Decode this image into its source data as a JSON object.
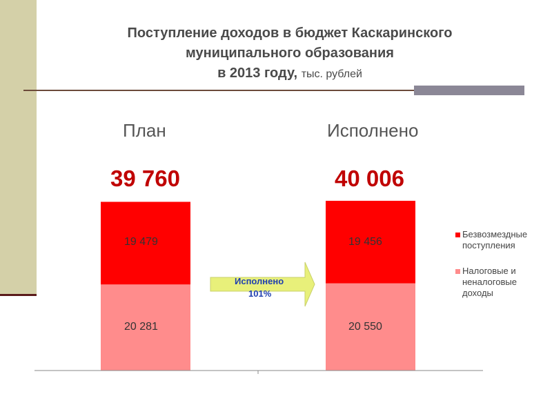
{
  "title": {
    "line1": "Поступление доходов в бюджет Каскаринского",
    "line2": "муниципального образования",
    "line3": "в 2013 году,",
    "unit": "тыс. рублей"
  },
  "colors": {
    "gratuitous": "#ff0000",
    "tax": "#ff8c8c",
    "total_text": "#c00000",
    "arrow": "#e8f07a"
  },
  "chart_data": {
    "type": "bar",
    "stacked": true,
    "categories": [
      "План",
      "Исполнено"
    ],
    "totals": [
      "39 760",
      "40 006"
    ],
    "series": [
      {
        "name": "Налоговые и неналоговые доходы",
        "values": [
          20281,
          20550
        ],
        "labels": [
          "20 281",
          "20 550"
        ],
        "color": "#ff8c8c"
      },
      {
        "name": "Безвозмездные поступления",
        "values": [
          19479,
          19456
        ],
        "labels": [
          "19 479",
          "19 456"
        ],
        "color": "#ff0000"
      }
    ],
    "legend": [
      "Безвозмездные поступления",
      "Налоговые и неналоговые доходы"
    ],
    "legend_position": "right",
    "annotation": {
      "text_line1": "Исполнено",
      "text_line2": "101%"
    }
  }
}
